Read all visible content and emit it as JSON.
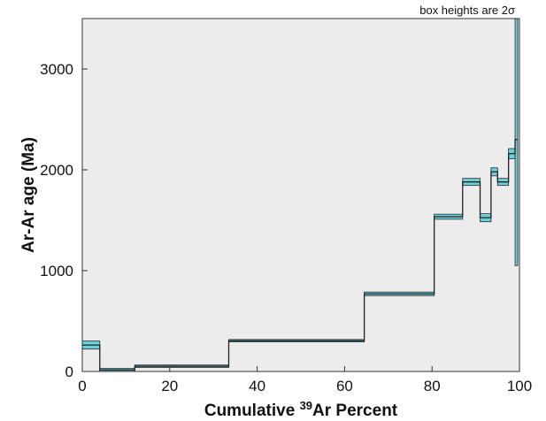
{
  "chart_data": {
    "type": "step",
    "title": "",
    "annotation": "box heights are 2σ",
    "xlabel_parts": {
      "pre": "Cumulative ",
      "sup": "39",
      "post": "Ar Percent"
    },
    "ylabel": "Ar-Ar age (Ma)",
    "xlim": [
      0,
      100
    ],
    "ylim": [
      0,
      3500
    ],
    "x_ticks": [
      0,
      20,
      40,
      60,
      80,
      100
    ],
    "y_ticks": [
      0,
      1000,
      2000,
      3000
    ],
    "grid": false,
    "plot_background": "#ececec",
    "box_fill": "#6cd0d8",
    "line_color": "#222222",
    "steps": [
      {
        "x0": 0,
        "x1": 4,
        "age": 262,
        "err": 40
      },
      {
        "x0": 4,
        "x1": 12,
        "age": 15,
        "err": 15
      },
      {
        "x0": 12,
        "x1": 33.5,
        "age": 52,
        "err": 12
      },
      {
        "x0": 33.5,
        "x1": 64.5,
        "age": 305,
        "err": 12
      },
      {
        "x0": 64.5,
        "x1": 80.5,
        "age": 770,
        "err": 18
      },
      {
        "x0": 80.5,
        "x1": 87,
        "age": 1535,
        "err": 25
      },
      {
        "x0": 87,
        "x1": 91,
        "age": 1880,
        "err": 35
      },
      {
        "x0": 91,
        "x1": 93.5,
        "age": 1525,
        "err": 40
      },
      {
        "x0": 93.5,
        "x1": 95,
        "age": 1980,
        "err": 40
      },
      {
        "x0": 95,
        "x1": 97.5,
        "age": 1880,
        "err": 35
      },
      {
        "x0": 97.5,
        "x1": 99,
        "age": 2160,
        "err": 50
      },
      {
        "x0": 99,
        "x1": 99.6,
        "age": 2300,
        "err": 1250
      }
    ]
  }
}
